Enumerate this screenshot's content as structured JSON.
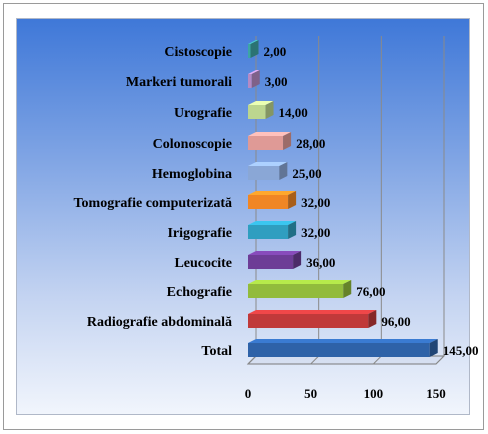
{
  "chart_data": {
    "type": "bar",
    "orientation": "horizontal",
    "categories": [
      "Total",
      "Radiografie abdominală",
      "Echografie",
      "Leucocite",
      "Irigografie",
      "Tomografie computerizată",
      "Hemoglobina",
      "Colonoscopie",
      "Urografie",
      "Markeri tumorali",
      "Cistoscopie"
    ],
    "values": [
      145,
      96,
      76,
      36,
      32,
      32,
      25,
      28,
      14,
      3,
      2
    ],
    "value_labels": [
      "145,00",
      "96,00",
      "76,00",
      "36,00",
      "32,00",
      "32,00",
      "25,00",
      "28,00",
      "14,00",
      "3,00",
      "2,00"
    ],
    "colors": [
      "#2e62a8",
      "#c0393a",
      "#92bb3c",
      "#6d3d96",
      "#2f9ec0",
      "#f08624",
      "#8aa7d6",
      "#df9a96",
      "#bcd68f",
      "#b58ac4",
      "#3da5a5"
    ],
    "xlim": [
      0,
      150
    ],
    "x_ticks": [
      0,
      50,
      100,
      150
    ],
    "grid": true,
    "style": "3d",
    "title": "",
    "xlabel": "",
    "ylabel": ""
  }
}
